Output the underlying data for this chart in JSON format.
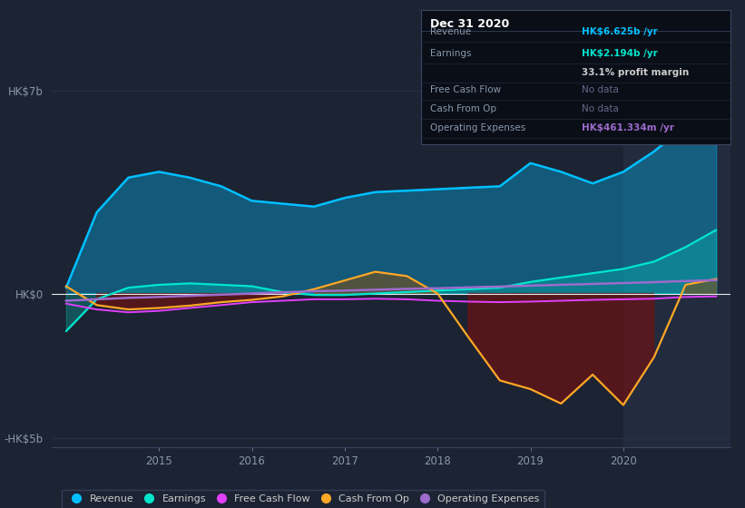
{
  "background_color": "#1c2333",
  "plot_bg_color": "#1c2333",
  "highlight_bg_color": "#252e42",
  "revenue_color": "#00bfff",
  "earnings_color": "#00e5cc",
  "free_cash_flow_color": "#e040fb",
  "cash_from_op_color": "#ffa726",
  "operating_expenses_color": "#9c6bcc",
  "zero_line_color": "#ffffff",
  "grid_color": "#2e3a50",
  "tooltip_bg": "#0a0e17",
  "tooltip_border": "#2e3a50",
  "legend_items": [
    "Revenue",
    "Earnings",
    "Free Cash Flow",
    "Cash From Op",
    "Operating Expenses"
  ],
  "legend_colors": [
    "#00bfff",
    "#00e5cc",
    "#e040fb",
    "#ffa726",
    "#9c6bcc"
  ],
  "tooltip_title": "Dec 31 2020",
  "tooltip_revenue_label": "Revenue",
  "tooltip_revenue_value": "HK$6.625b /yr",
  "tooltip_revenue_color": "#00bfff",
  "tooltip_earnings_label": "Earnings",
  "tooltip_earnings_value": "HK$2.194b /yr",
  "tooltip_earnings_color": "#00e5cc",
  "tooltip_margin": "33.1% profit margin",
  "tooltip_fcf_label": "Free Cash Flow",
  "tooltip_fcf_value": "No data",
  "tooltip_cashop_label": "Cash From Op",
  "tooltip_cashop_value": "No data",
  "tooltip_opex_label": "Operating Expenses",
  "tooltip_opex_value": "HK$461.334m /yr",
  "tooltip_opex_color": "#9c6bcc",
  "ytick_labels": [
    "-HK$5b",
    "HK$0",
    "HK$7b"
  ],
  "ytick_values": [
    -5,
    0,
    7
  ],
  "xtick_labels": [
    "2015",
    "2016",
    "2017",
    "2018",
    "2019",
    "2020"
  ],
  "xtick_values": [
    2015,
    2016,
    2017,
    2018,
    2019,
    2020
  ],
  "xlim": [
    2013.85,
    2021.15
  ],
  "ylim": [
    -5.3,
    7.5
  ],
  "x": [
    2014.0,
    2014.33,
    2014.67,
    2015.0,
    2015.33,
    2015.67,
    2016.0,
    2016.33,
    2016.67,
    2017.0,
    2017.33,
    2017.67,
    2018.0,
    2018.33,
    2018.67,
    2019.0,
    2019.33,
    2019.67,
    2020.0,
    2020.33,
    2020.67,
    2021.0
  ],
  "revenue": [
    0.2,
    2.8,
    4.0,
    4.2,
    4.0,
    3.7,
    3.2,
    3.1,
    3.0,
    3.3,
    3.5,
    3.55,
    3.6,
    3.65,
    3.7,
    4.5,
    4.2,
    3.8,
    4.2,
    4.9,
    5.8,
    6.625
  ],
  "earnings": [
    -1.3,
    -0.2,
    0.2,
    0.3,
    0.35,
    0.3,
    0.25,
    0.05,
    -0.05,
    -0.05,
    0.0,
    0.05,
    0.1,
    0.15,
    0.2,
    0.4,
    0.55,
    0.7,
    0.85,
    1.1,
    1.6,
    2.194
  ],
  "free_cash_flow": [
    -0.35,
    -0.55,
    -0.65,
    -0.6,
    -0.5,
    -0.4,
    -0.3,
    -0.25,
    -0.2,
    -0.2,
    -0.18,
    -0.2,
    -0.25,
    -0.28,
    -0.3,
    -0.28,
    -0.25,
    -0.22,
    -0.2,
    -0.18,
    -0.12,
    -0.1
  ],
  "cash_from_op": [
    0.25,
    -0.4,
    -0.55,
    -0.5,
    -0.42,
    -0.3,
    -0.22,
    -0.1,
    0.15,
    0.45,
    0.75,
    0.6,
    0.0,
    -1.5,
    -3.0,
    -3.3,
    -3.8,
    -2.8,
    -3.85,
    -2.2,
    0.3,
    0.5
  ],
  "operating_expenses": [
    -0.25,
    -0.2,
    -0.15,
    -0.12,
    -0.08,
    -0.04,
    0.0,
    0.04,
    0.08,
    0.1,
    0.13,
    0.16,
    0.18,
    0.21,
    0.24,
    0.27,
    0.3,
    0.33,
    0.36,
    0.39,
    0.43,
    0.461
  ],
  "highlight_start": 2020.0,
  "highlight_end": 2021.15
}
